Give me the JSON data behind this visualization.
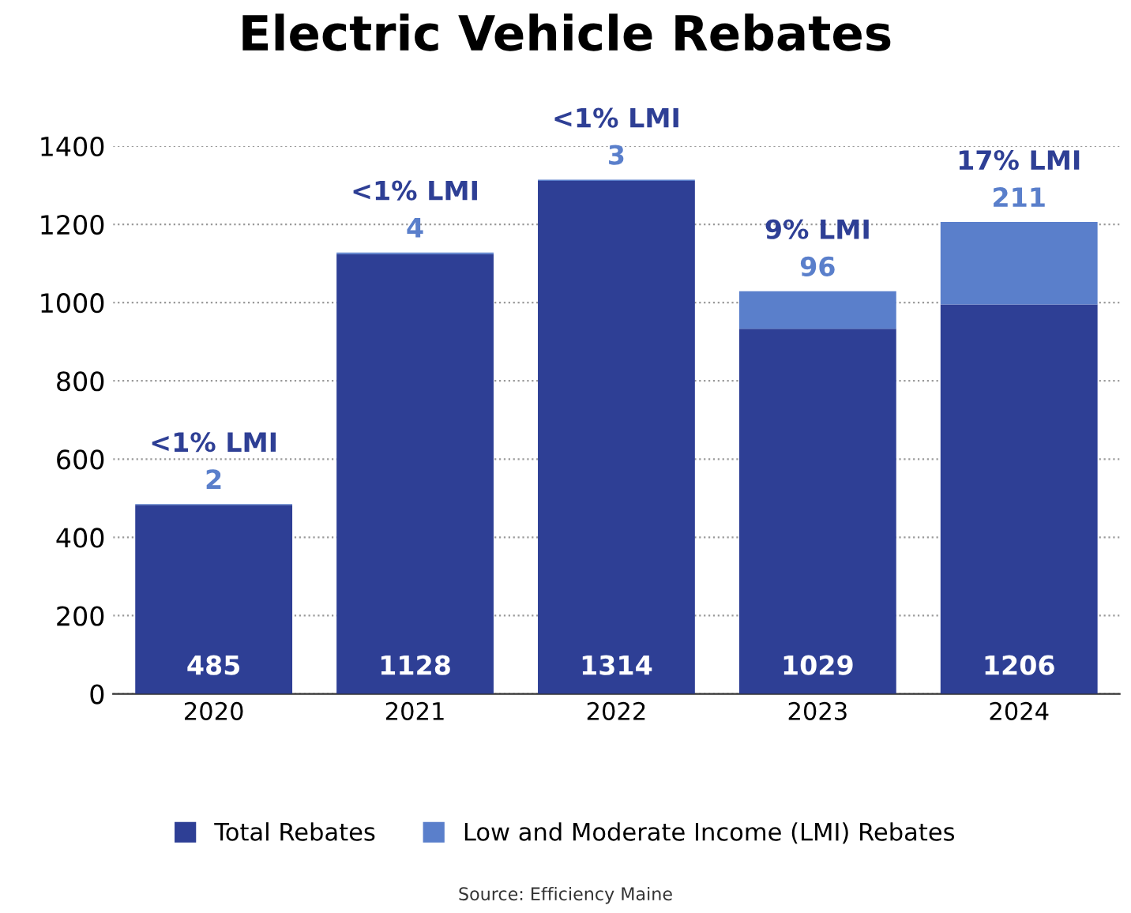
{
  "chart_data": {
    "type": "bar",
    "title": "Electric Vehicle Rebates",
    "categories": [
      "2020",
      "2021",
      "2022",
      "2023",
      "2024"
    ],
    "stacked": true,
    "series": [
      {
        "name": "Total Rebates",
        "color": "#2e3f95",
        "values": [
          483,
          1124,
          1311,
          933,
          995
        ]
      },
      {
        "name": "Low and Moderate Income (LMI) Rebates",
        "color": "#5a7fcb",
        "values": [
          2,
          4,
          3,
          96,
          211
        ],
        "value_labels": [
          "2",
          "4",
          "3",
          "96",
          "211"
        ]
      }
    ],
    "annotations": [
      {
        "text": "<1% LMI",
        "x": "2020",
        "y": 485
      },
      {
        "text": "<1% LMI",
        "x": "2021",
        "y": 1128
      },
      {
        "text": "<1% LMI",
        "x": "2022",
        "y": 1314
      },
      {
        "text": "9% LMI",
        "x": "2023",
        "y": 1029
      },
      {
        "text": "17% LMI",
        "x": "2024",
        "y": 1206
      },
      "Source: Efficiency Maine"
    ],
    "totals": [
      "485",
      "1128",
      "1314",
      "1029",
      "1206"
    ],
    "ylim": [
      0,
      1400
    ],
    "yticks": [
      0,
      200,
      400,
      600,
      800,
      1000,
      1200,
      1400
    ],
    "grid": "y",
    "legend": "bottom"
  }
}
